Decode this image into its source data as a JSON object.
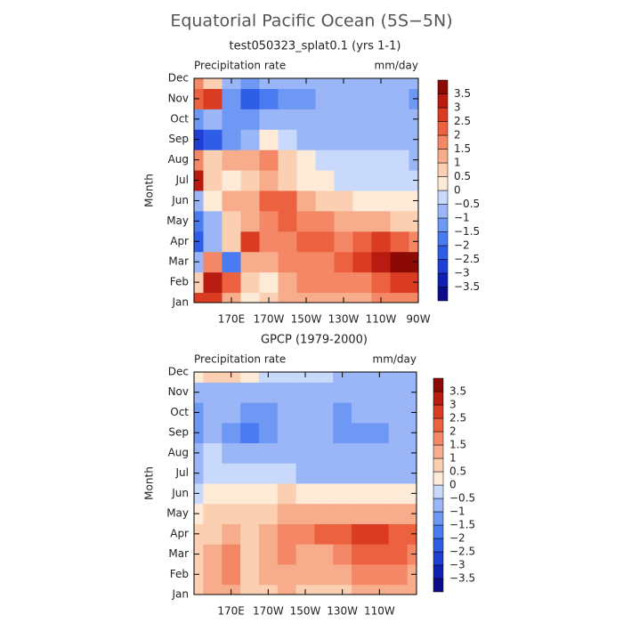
{
  "title": "Equatorial Pacific Ocean (5S−5N)",
  "chart_data": [
    {
      "type": "heatmap",
      "subtitle": "test050323_splat0.1 (yrs 1-1)",
      "label_left": "Precipitation rate",
      "label_right": "mm/day",
      "ylabel": "Month",
      "categories": [
        "Jan",
        "Feb",
        "Mar",
        "Apr",
        "May",
        "Jun",
        "Jul",
        "Aug",
        "Sep",
        "Oct",
        "Nov",
        "Dec"
      ],
      "x": [
        150,
        160,
        170,
        180,
        190,
        200,
        210,
        220,
        230,
        240,
        250,
        260,
        270
      ],
      "xlim": [
        150,
        270
      ],
      "xticks": [
        {
          "value": 170,
          "label": "170E"
        },
        {
          "value": 190,
          "label": "170W"
        },
        {
          "value": 210,
          "label": "150W"
        },
        {
          "value": 230,
          "label": "130W"
        },
        {
          "value": 250,
          "label": "110W"
        },
        {
          "value": 270,
          "label": "90W"
        }
      ],
      "values": [
        [
          2.5,
          2.5,
          1,
          0,
          0.5,
          1,
          1,
          1,
          1,
          1,
          1.5,
          1.5,
          1.5
        ],
        [
          0.5,
          3,
          2,
          0.5,
          0,
          1,
          1.5,
          1.5,
          1.5,
          1.5,
          2,
          2.5,
          2.5
        ],
        [
          -1,
          1.5,
          -2,
          1,
          1,
          1.5,
          1.5,
          1.5,
          2,
          2.5,
          3,
          3.5,
          3.5
        ],
        [
          -2.5,
          -1,
          0.5,
          2.5,
          1.5,
          1.5,
          2,
          2,
          1.5,
          2,
          2.5,
          2,
          1.5
        ],
        [
          -2,
          -1,
          0.5,
          1,
          1.5,
          2,
          1.5,
          1.5,
          1,
          1,
          1,
          0.5,
          0.5
        ],
        [
          -1,
          0,
          1,
          1,
          2,
          2,
          1,
          0.5,
          0.5,
          0,
          0,
          0,
          0
        ],
        [
          3,
          0.5,
          0,
          0.5,
          1,
          0.5,
          0,
          0,
          -0.5,
          -0.5,
          -0.5,
          -0.5,
          -0.5
        ],
        [
          1.5,
          0.5,
          1,
          1,
          1.5,
          0.5,
          0,
          -0.5,
          -0.5,
          -0.5,
          -0.5,
          -0.5,
          -1
        ],
        [
          -3,
          -2.5,
          -1.5,
          -1,
          0,
          -0.5,
          -1,
          -1,
          -1,
          -1,
          -1,
          -1,
          -1
        ],
        [
          -1.5,
          -1,
          -1.5,
          -1.5,
          -1,
          -1,
          -1,
          -1,
          -1,
          -1,
          -1,
          -1,
          -1
        ],
        [
          2,
          2.5,
          -1.5,
          -2.5,
          -2,
          -1.5,
          -1.5,
          -1,
          -1,
          -1,
          -1,
          -1,
          -1.5
        ],
        [
          1.5,
          0.5,
          -1,
          -1.5,
          -1,
          -1,
          -1,
          -1,
          -1,
          -1,
          -1,
          -1,
          -1
        ]
      ],
      "levels": [
        {
          "value": -3.5,
          "label": "−3.5"
        },
        {
          "value": -3,
          "label": "−3"
        },
        {
          "value": -2.5,
          "label": "−2.5"
        },
        {
          "value": -2,
          "label": "−2"
        },
        {
          "value": -1.5,
          "label": "−1.5"
        },
        {
          "value": -1,
          "label": "−1"
        },
        {
          "value": -0.5,
          "label": "−0.5"
        },
        0,
        0.5,
        1,
        1.5,
        2,
        2.5,
        3,
        3.5
      ],
      "colors": [
        "#0c0c88",
        "#1020b0",
        "#1f3fd2",
        "#2f5ee6",
        "#4a7bf0",
        "#6f98f4",
        "#9ab6f6",
        "#c8d9fb",
        "#fdebd8",
        "#fbcfb2",
        "#f7ad8c",
        "#f48866",
        "#ec6140",
        "#d93c22",
        "#b81c10",
        "#8b0a05"
      ]
    },
    {
      "type": "heatmap",
      "subtitle": "GPCP (1979-2000)",
      "label_left": "Precipitation rate",
      "label_right": "mm/day",
      "ylabel": "Month",
      "categories": [
        "Jan",
        "Feb",
        "Mar",
        "Apr",
        "May",
        "Jun",
        "Jul",
        "Aug",
        "Sep",
        "Oct",
        "Nov",
        "Dec"
      ],
      "x": [
        150,
        160,
        170,
        180,
        190,
        200,
        210,
        220,
        230,
        240,
        250,
        260,
        270
      ],
      "xlim": [
        150,
        270
      ],
      "xticks": [
        {
          "value": 170,
          "label": "170E"
        },
        {
          "value": 190,
          "label": "170W"
        },
        {
          "value": 210,
          "label": "150W"
        },
        {
          "value": 230,
          "label": "130W"
        },
        {
          "value": 250,
          "label": "110W"
        }
      ],
      "values": [
        [
          0.5,
          1,
          1,
          0.5,
          0.5,
          1,
          0.5,
          0.5,
          0.5,
          1,
          1,
          1,
          1
        ],
        [
          0.5,
          1,
          1.5,
          0.5,
          1,
          1,
          1,
          1,
          1,
          1.5,
          1.5,
          1.5,
          1
        ],
        [
          0.5,
          1,
          1.5,
          0.5,
          1,
          1.5,
          1,
          1,
          1.5,
          2,
          2,
          2,
          1.5
        ],
        [
          0.5,
          0.5,
          1,
          0.5,
          1,
          1.5,
          1.5,
          2,
          2,
          2.5,
          2.5,
          2,
          2
        ],
        [
          0,
          0.5,
          0.5,
          0.5,
          0.5,
          1,
          1,
          1,
          1,
          1,
          1,
          1,
          1
        ],
        [
          -0.5,
          0,
          0,
          0,
          0,
          0.5,
          0,
          0,
          0,
          0,
          0,
          0,
          0
        ],
        [
          -1,
          -0.5,
          -0.5,
          -0.5,
          -0.5,
          -0.5,
          -1,
          -1,
          -1,
          -1,
          -1,
          -1,
          -1
        ],
        [
          -1,
          -0.5,
          -1,
          -1,
          -1,
          -1,
          -1,
          -1,
          -1,
          -1,
          -1,
          -1,
          -1
        ],
        [
          -1.5,
          -1,
          -1.5,
          -2,
          -1.5,
          -1,
          -1,
          -1,
          -1.5,
          -1.5,
          -1.5,
          -1,
          -1
        ],
        [
          -1.5,
          -1,
          -1,
          -1.5,
          -1.5,
          -1,
          -1,
          -1,
          -1.5,
          -1,
          -1,
          -1,
          -1
        ],
        [
          -1,
          -1,
          -1,
          -1,
          -1,
          -1,
          -1,
          -1,
          -1,
          -1,
          -1,
          -1,
          -1
        ],
        [
          0,
          0.5,
          0.5,
          0,
          -0.5,
          -0.5,
          -0.5,
          -0.5,
          -1,
          -1,
          -1,
          -1,
          -1
        ]
      ],
      "levels": [
        {
          "value": -3.5,
          "label": "−3.5"
        },
        {
          "value": -3,
          "label": "−3"
        },
        {
          "value": -2.5,
          "label": "−2.5"
        },
        {
          "value": -2,
          "label": "−2"
        },
        {
          "value": -1.5,
          "label": "−1.5"
        },
        {
          "value": -1,
          "label": "−1"
        },
        {
          "value": -0.5,
          "label": "−0.5"
        },
        0,
        0.5,
        1,
        1.5,
        2,
        2.5,
        3,
        3.5
      ],
      "colors": [
        "#0c0c88",
        "#1020b0",
        "#1f3fd2",
        "#2f5ee6",
        "#4a7bf0",
        "#6f98f4",
        "#9ab6f6",
        "#c8d9fb",
        "#fdebd8",
        "#fbcfb2",
        "#f7ad8c",
        "#f48866",
        "#ec6140",
        "#d93c22",
        "#b81c10",
        "#8b0a05"
      ]
    }
  ]
}
